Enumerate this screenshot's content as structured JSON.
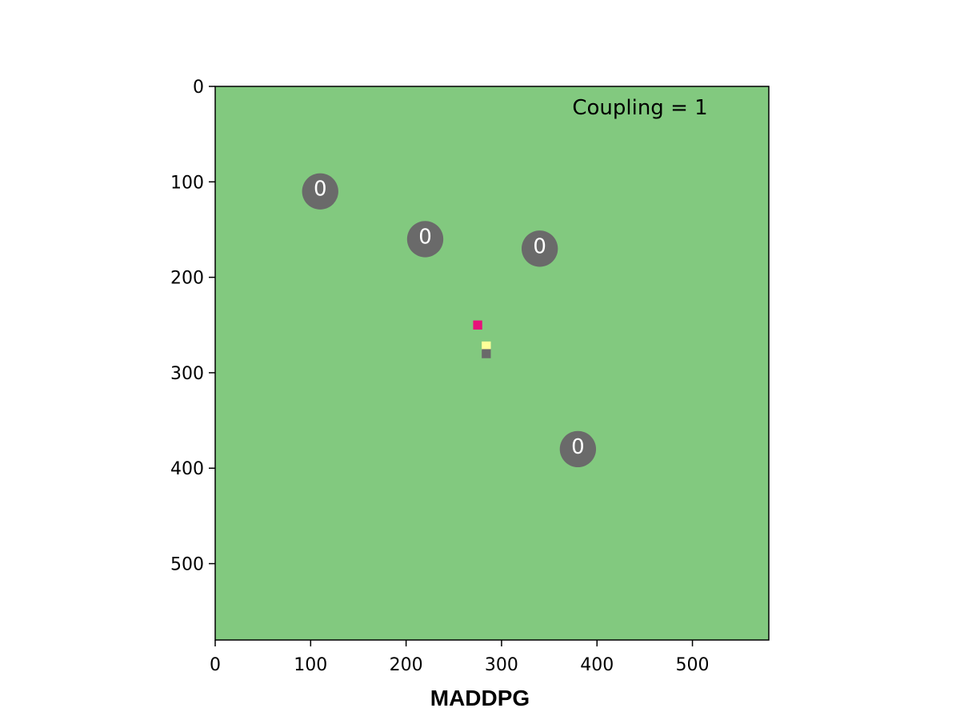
{
  "chart_data": {
    "type": "scatter",
    "title": "",
    "xlabel": "MADDPG",
    "ylabel": "",
    "xlim": [
      0,
      580
    ],
    "ylim": [
      580,
      0
    ],
    "y_inverted": true,
    "grid": false,
    "xticks": [
      0,
      100,
      200,
      300,
      400,
      500
    ],
    "yticks": [
      0,
      100,
      200,
      300,
      400,
      500
    ],
    "background_color": "#82c97f",
    "annotation": "Coupling = 1",
    "pois": [
      {
        "x": 110,
        "y": 110,
        "label": "0",
        "color": "#6a6a6a"
      },
      {
        "x": 220,
        "y": 160,
        "label": "0",
        "color": "#6a6a6a"
      },
      {
        "x": 340,
        "y": 170,
        "label": "0",
        "color": "#6a6a6a"
      },
      {
        "x": 380,
        "y": 380,
        "label": "0",
        "color": "#6a6a6a"
      }
    ],
    "agents": [
      {
        "x": 275,
        "y": 250,
        "color": "#e8127a"
      },
      {
        "x": 284,
        "y": 272,
        "color": "#ffff99"
      },
      {
        "x": 284,
        "y": 280,
        "color": "#6a6a6a"
      }
    ]
  }
}
